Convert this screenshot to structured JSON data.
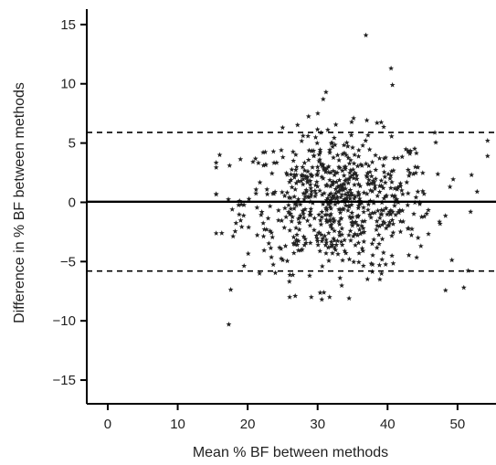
{
  "chart_data": {
    "type": "scatter",
    "title": "",
    "xlabel": "Mean % BF between methods",
    "ylabel": "Difference in % BF between methods",
    "xlim": [
      -3,
      55.5
    ],
    "ylim": [
      -17,
      16.3
    ],
    "xticks": [
      0,
      10,
      20,
      30,
      40,
      50
    ],
    "yticks": [
      15,
      10,
      5,
      0,
      -5,
      -10,
      -15
    ],
    "xtick_labels": [
      "0",
      "10",
      "20",
      "30",
      "40",
      "50"
    ],
    "ytick_labels": [
      "15",
      "10",
      "5",
      "0",
      "−5",
      "−10",
      "−15"
    ],
    "marker": "star",
    "grid": false,
    "reference_lines": [
      {
        "y": 5.9,
        "style": "dashed"
      },
      {
        "y": 0.05,
        "style": "solid"
      },
      {
        "y": -5.8,
        "style": "dashed"
      }
    ],
    "notable_points": [
      {
        "x": 36.9,
        "y": 14.1
      },
      {
        "x": 40.5,
        "y": 11.3
      },
      {
        "x": 40.7,
        "y": 9.9
      },
      {
        "x": 31.2,
        "y": 9.3
      },
      {
        "x": 30.8,
        "y": 8.7
      },
      {
        "x": 17.3,
        "y": -10.3
      },
      {
        "x": 30.6,
        "y": -8.2
      },
      {
        "x": 34.5,
        "y": -8.1
      },
      {
        "x": 26.8,
        "y": -7.9
      },
      {
        "x": 38.9,
        "y": -6.5
      },
      {
        "x": 50.9,
        "y": -7.2
      },
      {
        "x": 54.3,
        "y": 5.2
      },
      {
        "x": 54.3,
        "y": 3.9
      },
      {
        "x": 16.0,
        "y": 4.0
      },
      {
        "x": 16.3,
        "y": -2.6
      },
      {
        "x": 52.8,
        "y": 0.9
      }
    ],
    "bulk_point_count": 700,
    "bulk_distribution": {
      "x_mean": 33,
      "x_sd": 6.8,
      "x_range": [
        15.5,
        52
      ],
      "y_mean": 0,
      "y_sd": 2.9,
      "y_range": [
        -8,
        7.5
      ]
    },
    "colors": {
      "points": "#222222",
      "axes": "#000000",
      "lines": "#000000"
    }
  }
}
